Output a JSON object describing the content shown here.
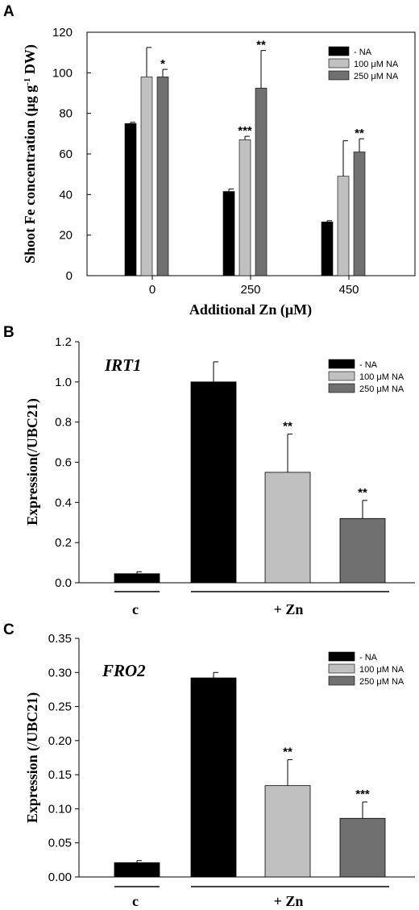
{
  "colors": {
    "no_na": "#000000",
    "na100": "#c0c0c0",
    "na250": "#707070"
  },
  "chart_data": [
    {
      "panel": "A",
      "type": "bar",
      "xlabel": "Additional Zn (μM)",
      "ylabel_parts": [
        "Shoot Fe concentration (μg g",
        "-1",
        " DW)"
      ],
      "ylim": [
        0,
        120
      ],
      "yticks": [
        "0",
        "20",
        "40",
        "60",
        "80",
        "100",
        "120"
      ],
      "categories": [
        "0",
        "250",
        "450"
      ],
      "series": [
        {
          "name": "- NA",
          "values": [
            75,
            41.5,
            26.5
          ],
          "errors": [
            0.6,
            1.2,
            0.6
          ]
        },
        {
          "name": "100 μM NA",
          "values": [
            98,
            67,
            49
          ],
          "errors": [
            14.5,
            1.7,
            17.5
          ]
        },
        {
          "name": "250 μM NA",
          "values": [
            98,
            92.5,
            61
          ],
          "errors": [
            3.7,
            18.5,
            6.5
          ]
        }
      ],
      "significance": [
        {
          "category": 0,
          "series": 2,
          "label": "*"
        },
        {
          "category": 1,
          "series": 1,
          "label": "***"
        },
        {
          "category": 1,
          "series": 2,
          "label": "**"
        },
        {
          "category": 2,
          "series": 2,
          "label": "**"
        }
      ],
      "legend": [
        "- NA",
        "100 μM NA",
        "250 μM NA"
      ],
      "legend_position": "top-right"
    },
    {
      "panel": "B",
      "type": "bar",
      "gene": "IRT1",
      "ylabel": "Expression(/UBC21)",
      "ylim": [
        0,
        1.2
      ],
      "yticks": [
        "0.0",
        "0.2",
        "0.4",
        "0.6",
        "0.8",
        "1.0",
        "1.2"
      ],
      "bars": [
        {
          "series": "- NA",
          "value": 0.045,
          "error": 0.01
        },
        {
          "series": "- NA",
          "value": 1.0,
          "error": 0.1
        },
        {
          "series": "100 μM NA",
          "value": 0.55,
          "error": 0.19
        },
        {
          "series": "250 μM NA",
          "value": 0.32,
          "error": 0.09
        }
      ],
      "significance": [
        {
          "bar": 2,
          "label": "**"
        },
        {
          "bar": 3,
          "label": "**"
        }
      ],
      "groups": [
        {
          "label": "c",
          "bars": [
            0
          ]
        },
        {
          "label": "+ Zn",
          "bars": [
            1,
            2,
            3
          ]
        }
      ],
      "legend": [
        "- NA",
        "100 μM NA",
        "250 μM NA"
      ],
      "legend_position": "top-right"
    },
    {
      "panel": "C",
      "type": "bar",
      "gene": "FRO2",
      "ylabel": "Expression (/UBC21)",
      "ylim": [
        0,
        0.35
      ],
      "yticks": [
        "0.00",
        "0.05",
        "0.10",
        "0.15",
        "0.20",
        "0.25",
        "0.30",
        "0.35"
      ],
      "bars": [
        {
          "series": "- NA",
          "value": 0.021,
          "error": 0.003
        },
        {
          "series": "- NA",
          "value": 0.292,
          "error": 0.008
        },
        {
          "series": "100 μM NA",
          "value": 0.134,
          "error": 0.038
        },
        {
          "series": "250 μM NA",
          "value": 0.086,
          "error": 0.024
        }
      ],
      "significance": [
        {
          "bar": 2,
          "label": "**"
        },
        {
          "bar": 3,
          "label": "***"
        }
      ],
      "groups": [
        {
          "label": "c",
          "bars": [
            0
          ]
        },
        {
          "label": "+ Zn",
          "bars": [
            1,
            2,
            3
          ]
        }
      ],
      "legend": [
        "- NA",
        "100 μM NA",
        "250 μM NA"
      ],
      "legend_position": "top-right"
    }
  ]
}
